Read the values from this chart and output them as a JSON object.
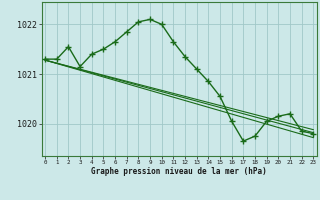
{
  "title": "Graphe pression niveau de la mer (hPa)",
  "background_color": "#cce8e8",
  "grid_color": "#a0c8c8",
  "line_color": "#1a6b1a",
  "xlim": [
    -0.3,
    23.3
  ],
  "ylim": [
    1019.35,
    1022.45
  ],
  "yticks": [
    1020,
    1021,
    1022
  ],
  "xticks": [
    0,
    1,
    2,
    3,
    4,
    5,
    6,
    7,
    8,
    9,
    10,
    11,
    12,
    13,
    14,
    15,
    16,
    17,
    18,
    19,
    20,
    21,
    22,
    23
  ],
  "series_main": [
    [
      0,
      1021.3
    ],
    [
      1,
      1021.3
    ],
    [
      2,
      1021.55
    ],
    [
      3,
      1021.15
    ],
    [
      4,
      1021.4
    ],
    [
      5,
      1021.5
    ],
    [
      6,
      1021.65
    ],
    [
      7,
      1021.85
    ],
    [
      8,
      1022.05
    ],
    [
      9,
      1022.1
    ],
    [
      10,
      1022.0
    ],
    [
      11,
      1021.65
    ],
    [
      12,
      1021.35
    ],
    [
      13,
      1021.1
    ],
    [
      14,
      1020.85
    ],
    [
      15,
      1020.55
    ],
    [
      16,
      1020.05
    ],
    [
      17,
      1019.65
    ],
    [
      18,
      1019.75
    ],
    [
      19,
      1020.05
    ],
    [
      20,
      1020.15
    ],
    [
      21,
      1020.2
    ],
    [
      22,
      1019.85
    ],
    [
      23,
      1019.8
    ]
  ],
  "series_line1": [
    [
      0,
      1021.28
    ],
    [
      23,
      1019.82
    ]
  ],
  "series_line2": [
    [
      0,
      1021.28
    ],
    [
      23,
      1019.72
    ]
  ],
  "series_line3": [
    [
      0,
      1021.28
    ],
    [
      23,
      1019.88
    ]
  ]
}
